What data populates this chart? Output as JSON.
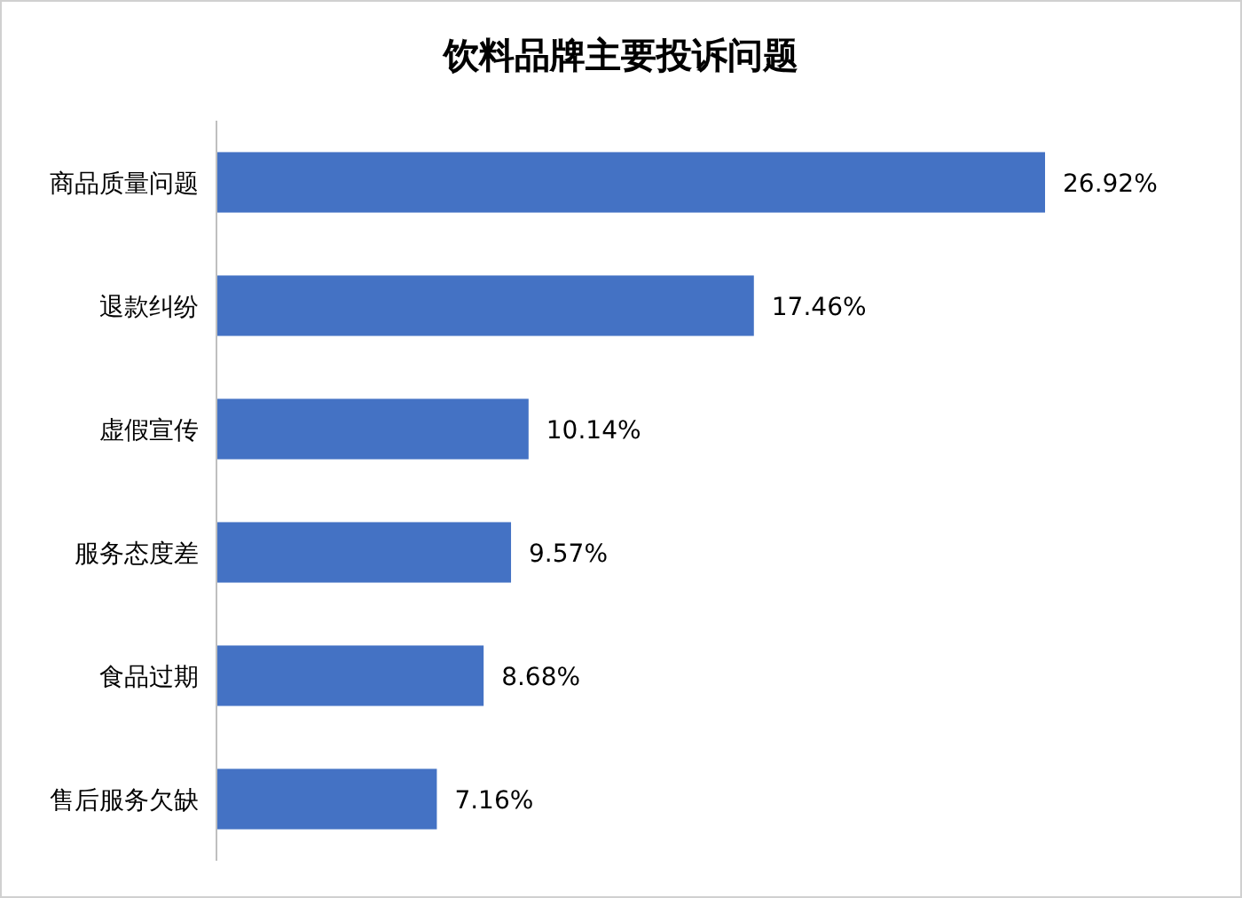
{
  "chart_data": {
    "type": "bar",
    "orientation": "horizontal",
    "title": "饮料品牌主要投诉问题",
    "categories": [
      "商品质量问题",
      "退款纠纷",
      "虚假宣传",
      "服务态度差",
      "食品过期",
      "售后服务欠缺"
    ],
    "values": [
      26.92,
      17.46,
      10.14,
      9.57,
      8.68,
      7.16
    ],
    "value_labels": [
      "26.92%",
      "17.46%",
      "10.14%",
      "9.57%",
      "8.68%",
      "7.16%"
    ],
    "color": "#4472c4"
  }
}
